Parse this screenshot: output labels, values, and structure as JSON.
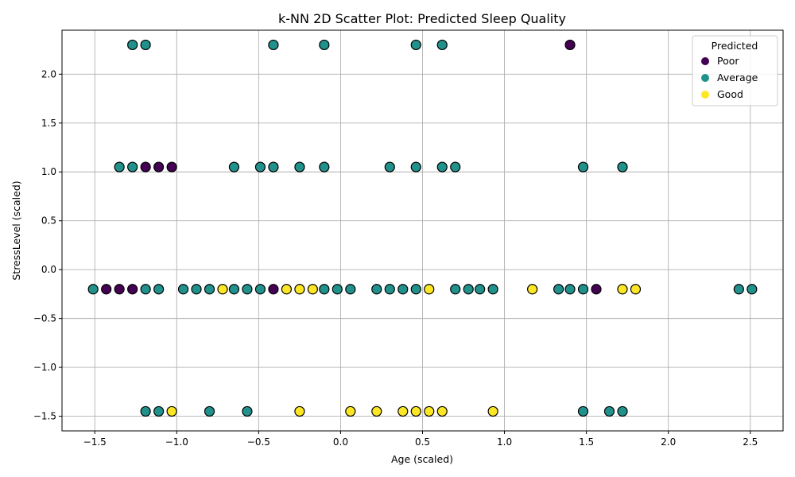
{
  "chart_data": {
    "type": "scatter",
    "title": "k-NN 2D Scatter Plot: Predicted Sleep Quality",
    "xlabel": "Age (scaled)",
    "ylabel": "StressLevel (scaled)",
    "xlim": [
      -1.7,
      2.7
    ],
    "ylim": [
      -1.65,
      2.45
    ],
    "xticks": [
      -1.5,
      -1.0,
      -0.5,
      0.0,
      0.5,
      1.0,
      1.5,
      2.0,
      2.5
    ],
    "xtick_labels": [
      "−1.5",
      "−1.0",
      "−0.5",
      "0.0",
      "0.5",
      "1.0",
      "1.5",
      "2.0",
      "2.5"
    ],
    "yticks": [
      -1.5,
      -1.0,
      -0.5,
      0.0,
      0.5,
      1.0,
      1.5,
      2.0
    ],
    "ytick_labels": [
      "−1.5",
      "−1.0",
      "−0.5",
      "0.0",
      "0.5",
      "1.0",
      "1.5",
      "2.0"
    ],
    "grid": true,
    "legend": {
      "title": "Predicted",
      "position": "top-right",
      "entries": [
        {
          "label": "Poor",
          "color": "#440154"
        },
        {
          "label": "Average",
          "color": "#21918c"
        },
        {
          "label": "Good",
          "color": "#fde725"
        }
      ]
    },
    "series": [
      {
        "name": "Poor",
        "color": "#440154",
        "points": [
          [
            1.4,
            2.3
          ],
          [
            -1.19,
            1.05
          ],
          [
            -1.11,
            1.05
          ],
          [
            -1.03,
            1.05
          ],
          [
            -1.43,
            -0.2
          ],
          [
            -1.35,
            -0.2
          ],
          [
            -1.27,
            -0.2
          ],
          [
            -0.41,
            -0.2
          ],
          [
            1.56,
            -0.2
          ]
        ]
      },
      {
        "name": "Average",
        "color": "#21918c",
        "points": [
          [
            -1.27,
            2.3
          ],
          [
            -1.19,
            2.3
          ],
          [
            -0.41,
            2.3
          ],
          [
            -0.1,
            2.3
          ],
          [
            0.46,
            2.3
          ],
          [
            0.62,
            2.3
          ],
          [
            -1.35,
            1.05
          ],
          [
            -1.27,
            1.05
          ],
          [
            -0.65,
            1.05
          ],
          [
            -0.49,
            1.05
          ],
          [
            -0.41,
            1.05
          ],
          [
            -0.25,
            1.05
          ],
          [
            -0.1,
            1.05
          ],
          [
            0.3,
            1.05
          ],
          [
            0.46,
            1.05
          ],
          [
            0.62,
            1.05
          ],
          [
            0.7,
            1.05
          ],
          [
            1.48,
            1.05
          ],
          [
            1.72,
            1.05
          ],
          [
            -1.51,
            -0.2
          ],
          [
            -1.19,
            -0.2
          ],
          [
            -1.11,
            -0.2
          ],
          [
            -0.96,
            -0.2
          ],
          [
            -0.88,
            -0.2
          ],
          [
            -0.8,
            -0.2
          ],
          [
            -0.65,
            -0.2
          ],
          [
            -0.57,
            -0.2
          ],
          [
            -0.49,
            -0.2
          ],
          [
            -0.1,
            -0.2
          ],
          [
            -0.02,
            -0.2
          ],
          [
            0.06,
            -0.2
          ],
          [
            0.22,
            -0.2
          ],
          [
            0.3,
            -0.2
          ],
          [
            0.38,
            -0.2
          ],
          [
            0.46,
            -0.2
          ],
          [
            0.7,
            -0.2
          ],
          [
            0.78,
            -0.2
          ],
          [
            0.85,
            -0.2
          ],
          [
            0.93,
            -0.2
          ],
          [
            1.33,
            -0.2
          ],
          [
            1.4,
            -0.2
          ],
          [
            1.48,
            -0.2
          ],
          [
            2.43,
            -0.2
          ],
          [
            2.51,
            -0.2
          ],
          [
            -1.19,
            -1.45
          ],
          [
            -1.11,
            -1.45
          ],
          [
            -0.8,
            -1.45
          ],
          [
            -0.57,
            -1.45
          ],
          [
            1.48,
            -1.45
          ],
          [
            1.64,
            -1.45
          ],
          [
            1.72,
            -1.45
          ]
        ]
      },
      {
        "name": "Good",
        "color": "#fde725",
        "points": [
          [
            -0.72,
            -0.2
          ],
          [
            -0.33,
            -0.2
          ],
          [
            -0.25,
            -0.2
          ],
          [
            -0.17,
            -0.2
          ],
          [
            0.54,
            -0.2
          ],
          [
            1.17,
            -0.2
          ],
          [
            1.72,
            -0.2
          ],
          [
            1.8,
            -0.2
          ],
          [
            -1.03,
            -1.45
          ],
          [
            -0.25,
            -1.45
          ],
          [
            0.06,
            -1.45
          ],
          [
            0.22,
            -1.45
          ],
          [
            0.38,
            -1.45
          ],
          [
            0.46,
            -1.45
          ],
          [
            0.54,
            -1.45
          ],
          [
            0.62,
            -1.45
          ],
          [
            0.93,
            -1.45
          ]
        ]
      }
    ]
  }
}
